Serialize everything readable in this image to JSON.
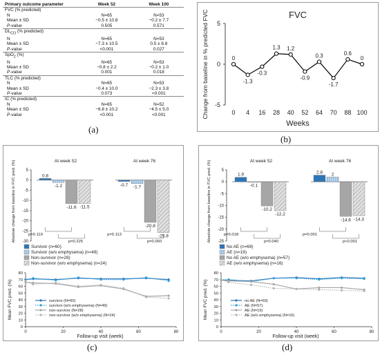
{
  "labels": {
    "a": "(a)",
    "b": "(b)",
    "c": "(c)",
    "d": "(d)"
  },
  "table": {
    "headers": [
      "Primary outcome parameter",
      "Week 52",
      "Week 100"
    ],
    "groups": [
      {
        "name": "FVC (% predicted)",
        "name_html": "FVC (% predicted)",
        "rows": [
          [
            "N",
            "N=65",
            "N=53"
          ],
          [
            "Mean ± SD",
            "−0.5 ± 10.8",
            "−0.2 ± 7.7"
          ],
          [
            "P-value",
            "0.505",
            "0.571"
          ]
        ]
      },
      {
        "name": "DLCO (% predicted)",
        "name_html": "DL<sub>CO</sub> (% predicted)",
        "rows": [
          [
            "N",
            "N=65",
            "N=53"
          ],
          [
            "Mean ± SD",
            "−7.3 ± 10.5",
            "0.5 ± 6.8"
          ],
          [
            "P-value",
            "<0.001",
            "0.027"
          ]
        ]
      },
      {
        "name": "SpO2 (%)",
        "name_html": "SpO<sub>2</sub> (%)",
        "rows": [
          [
            "N",
            "N=65",
            "N=53"
          ],
          [
            "Mean ± SD",
            "−0.8 ± 2.2",
            "−0.2 ± 1.0"
          ],
          [
            "P-value",
            "0.001",
            "0.018"
          ]
        ]
      },
      {
        "name": "TLC (% predicted)",
        "name_html": "TLC (% predicted)",
        "rows": [
          [
            "N",
            "N=65",
            "N=53"
          ],
          [
            "Mean ± SD",
            "−0.4 ± 10.0",
            "−2.3 ± 3.8"
          ],
          [
            "P-value",
            "0.073",
            "<0.001"
          ]
        ]
      },
      {
        "name": "IC (% predicted)",
        "name_html": "IC (% predicted)",
        "rows": [
          [
            "N",
            "N=65",
            "N=52"
          ],
          [
            "Mean ± SD",
            "−6.8 ± 10.2",
            "−4.5 ± 5.0"
          ],
          [
            "P-value",
            "<0.001",
            "<0.001"
          ]
        ]
      }
    ]
  },
  "chart_data": [
    {
      "id": "b",
      "type": "line",
      "title": "FVC",
      "xlabel": "Weeks",
      "ylabel": "Change from baseline in % predicted FVC",
      "x": [
        "0",
        "4",
        "16",
        "28",
        "40",
        "52",
        "64",
        "70",
        "88",
        "100"
      ],
      "values": [
        0,
        -1.3,
        -0.3,
        1.3,
        1.2,
        -0.9,
        0.3,
        -1.7,
        0.6,
        0
      ],
      "data_labels": [
        "0",
        "-1.3",
        "-0.3",
        "1.3",
        "1.2",
        "-0.9",
        "0.3",
        "-1.7",
        "0.6",
        "0"
      ],
      "ylim": [
        -5,
        5
      ],
      "yticks": [
        "5",
        "0",
        "-5"
      ],
      "grid": false,
      "color": "#000000"
    },
    {
      "id": "c_bar",
      "type": "bar",
      "ylabel": "Absolute change from baseline in FVC pred. (%)",
      "group_titles": [
        "At week 52",
        "At week 76"
      ],
      "ylim": [
        -30,
        5
      ],
      "yticks": [
        "5",
        "0",
        "-5",
        "-10",
        "-15",
        "-20",
        "-25",
        "-30"
      ],
      "series": [
        {
          "name": "Survivor (n=60)",
          "values": [
            0.8,
            -0.7
          ],
          "labels": [
            "0.8",
            "-0.7"
          ],
          "color": "#2e75b6",
          "pattern": "solid"
        },
        {
          "name": "Survivor (w/o emphysema) (n=49)",
          "values": [
            -1.2,
            -1.7
          ],
          "labels": [
            "-1.2",
            "-1.7"
          ],
          "color": "#9dc3e6",
          "pattern": "dots"
        },
        {
          "name": "Non-survivor (n=28)",
          "values": [
            -11.6,
            -20.8
          ],
          "labels": [
            "-11.6",
            "-20.8"
          ],
          "color": "#a6a6a6",
          "pattern": "solid"
        },
        {
          "name": "Non-survivor (w/o emphysema) (n=24)",
          "values": [
            -11.5,
            -25.8
          ],
          "labels": [
            "-11.5",
            "-25.8"
          ],
          "color": "#d0d0d0",
          "pattern": "hatch"
        }
      ],
      "pvalues": [
        {
          "text": "p=0.119",
          "group": 0
        },
        {
          "text": "p=0.225",
          "group": 0
        },
        {
          "text": "p=0.113",
          "group": 1
        },
        {
          "text": "p=0.060",
          "group": 1
        }
      ]
    },
    {
      "id": "c_line",
      "type": "line",
      "xlabel": "Follow-up visit (week)",
      "ylabel": "Mean FVC pred. (%)",
      "xlim": [
        0,
        80
      ],
      "ylim": [
        0,
        80
      ],
      "xticks": [
        "0",
        "20",
        "40",
        "60",
        "80"
      ],
      "yticks": [
        "0",
        "10",
        "20",
        "30",
        "40",
        "50",
        "60",
        "70",
        "80"
      ],
      "series": [
        {
          "name": "survivor (N=60)",
          "color": "#2e75b6",
          "dash": "solid",
          "x": [
            0,
            4,
            16,
            28,
            40,
            52,
            64,
            76
          ],
          "y": [
            70,
            71,
            70,
            72,
            71,
            71,
            72,
            70
          ]
        },
        {
          "name": "survivor (w/o emphysema) (N=49)",
          "color": "#2e9fd9",
          "dash": "dot",
          "x": [
            0,
            4,
            16,
            28,
            40,
            52,
            64,
            76
          ],
          "y": [
            70,
            72,
            69,
            73,
            70,
            70,
            73,
            68
          ]
        },
        {
          "name": "non-survivor (N=28)",
          "color": "#a6a6a6",
          "dash": "solid",
          "x": [
            0,
            4,
            16,
            28,
            40,
            52,
            64,
            76
          ],
          "y": [
            66,
            65,
            64,
            59,
            61,
            56,
            45,
            46
          ]
        },
        {
          "name": "non-survivor (w/o emphysema) (N=24)",
          "color": "#b4b4b4",
          "dash": "dot",
          "x": [
            0,
            4,
            16,
            28,
            40,
            52,
            64,
            76
          ],
          "y": [
            67,
            63,
            65,
            60,
            62,
            57,
            44,
            42
          ]
        }
      ]
    },
    {
      "id": "d_bar",
      "type": "bar",
      "ylabel": "Absolute change from baseline in FVC pred. (%)",
      "group_titles": [
        "At week 52",
        "At week 76"
      ],
      "ylim": [
        -25,
        5
      ],
      "yticks": [
        "5",
        "0",
        "-5",
        "-10",
        "-15",
        "-20",
        "-25"
      ],
      "series": [
        {
          "name": "No AE (n=69)",
          "values": [
            1.9,
            2.8
          ],
          "labels": [
            "1.9",
            "2.8"
          ],
          "color": "#2e75b6",
          "pattern": "solid"
        },
        {
          "name": "AE (n=19)",
          "values": [
            -0.1,
            2
          ],
          "labels": [
            "-0.1",
            "2"
          ],
          "color": "#9dc3e6",
          "pattern": "dots"
        },
        {
          "name": "No AE (w/o emphysema) (n=57)",
          "values": [
            -10.2,
            -14.6
          ],
          "labels": [
            "-10.2",
            "-14.6"
          ],
          "color": "#a6a6a6",
          "pattern": "solid"
        },
        {
          "name": "AE (w/o emphysema) (n=16)",
          "values": [
            -12.2,
            -14.3
          ],
          "labels": [
            "-12.2",
            "-14.3"
          ],
          "color": "#d0d0d0",
          "pattern": "hatch"
        }
      ],
      "pvalues": [
        {
          "text": "p=0.018",
          "group": 0
        },
        {
          "text": "p=0.040",
          "group": 0
        },
        {
          "text": "p=0.001",
          "group": 1
        },
        {
          "text": "p<0.001",
          "group": 1
        }
      ]
    },
    {
      "id": "d_line",
      "type": "line",
      "xlabel": "Follow-up visit (week)",
      "ylabel": "Mean FVC pred. (%)",
      "xlim": [
        0,
        80
      ],
      "ylim": [
        0,
        80
      ],
      "xticks": [
        "0",
        "20",
        "40",
        "60",
        "80"
      ],
      "yticks": [
        "0",
        "10",
        "20",
        "30",
        "40",
        "50",
        "60",
        "70",
        "80"
      ],
      "series": [
        {
          "name": "no AE (N=69)",
          "color": "#2e75b6",
          "dash": "solid",
          "x": [
            0,
            4,
            16,
            28,
            40,
            52,
            64,
            76
          ],
          "y": [
            69,
            69,
            68,
            72,
            73,
            71,
            73,
            72
          ]
        },
        {
          "name": "AE (N=57)",
          "color": "#2e9fd9",
          "dash": "dot",
          "x": [
            0,
            4,
            16,
            28,
            40,
            52,
            64,
            76
          ],
          "y": [
            70,
            70,
            67,
            72,
            72,
            70,
            72,
            71
          ]
        },
        {
          "name": "AE (N=19)",
          "color": "#a6a6a6",
          "dash": "solid",
          "x": [
            0,
            4,
            16,
            28,
            40,
            52,
            64,
            76
          ],
          "y": [
            69,
            68,
            67,
            63,
            56,
            58,
            58,
            55
          ]
        },
        {
          "name": "AE (w/o emphysema) (N=16)",
          "color": "#b4b4b4",
          "dash": "dot",
          "x": [
            0,
            4,
            16,
            28,
            40,
            52,
            64,
            76
          ],
          "y": [
            70,
            66,
            62,
            57,
            56,
            55,
            54,
            53
          ]
        }
      ]
    }
  ]
}
